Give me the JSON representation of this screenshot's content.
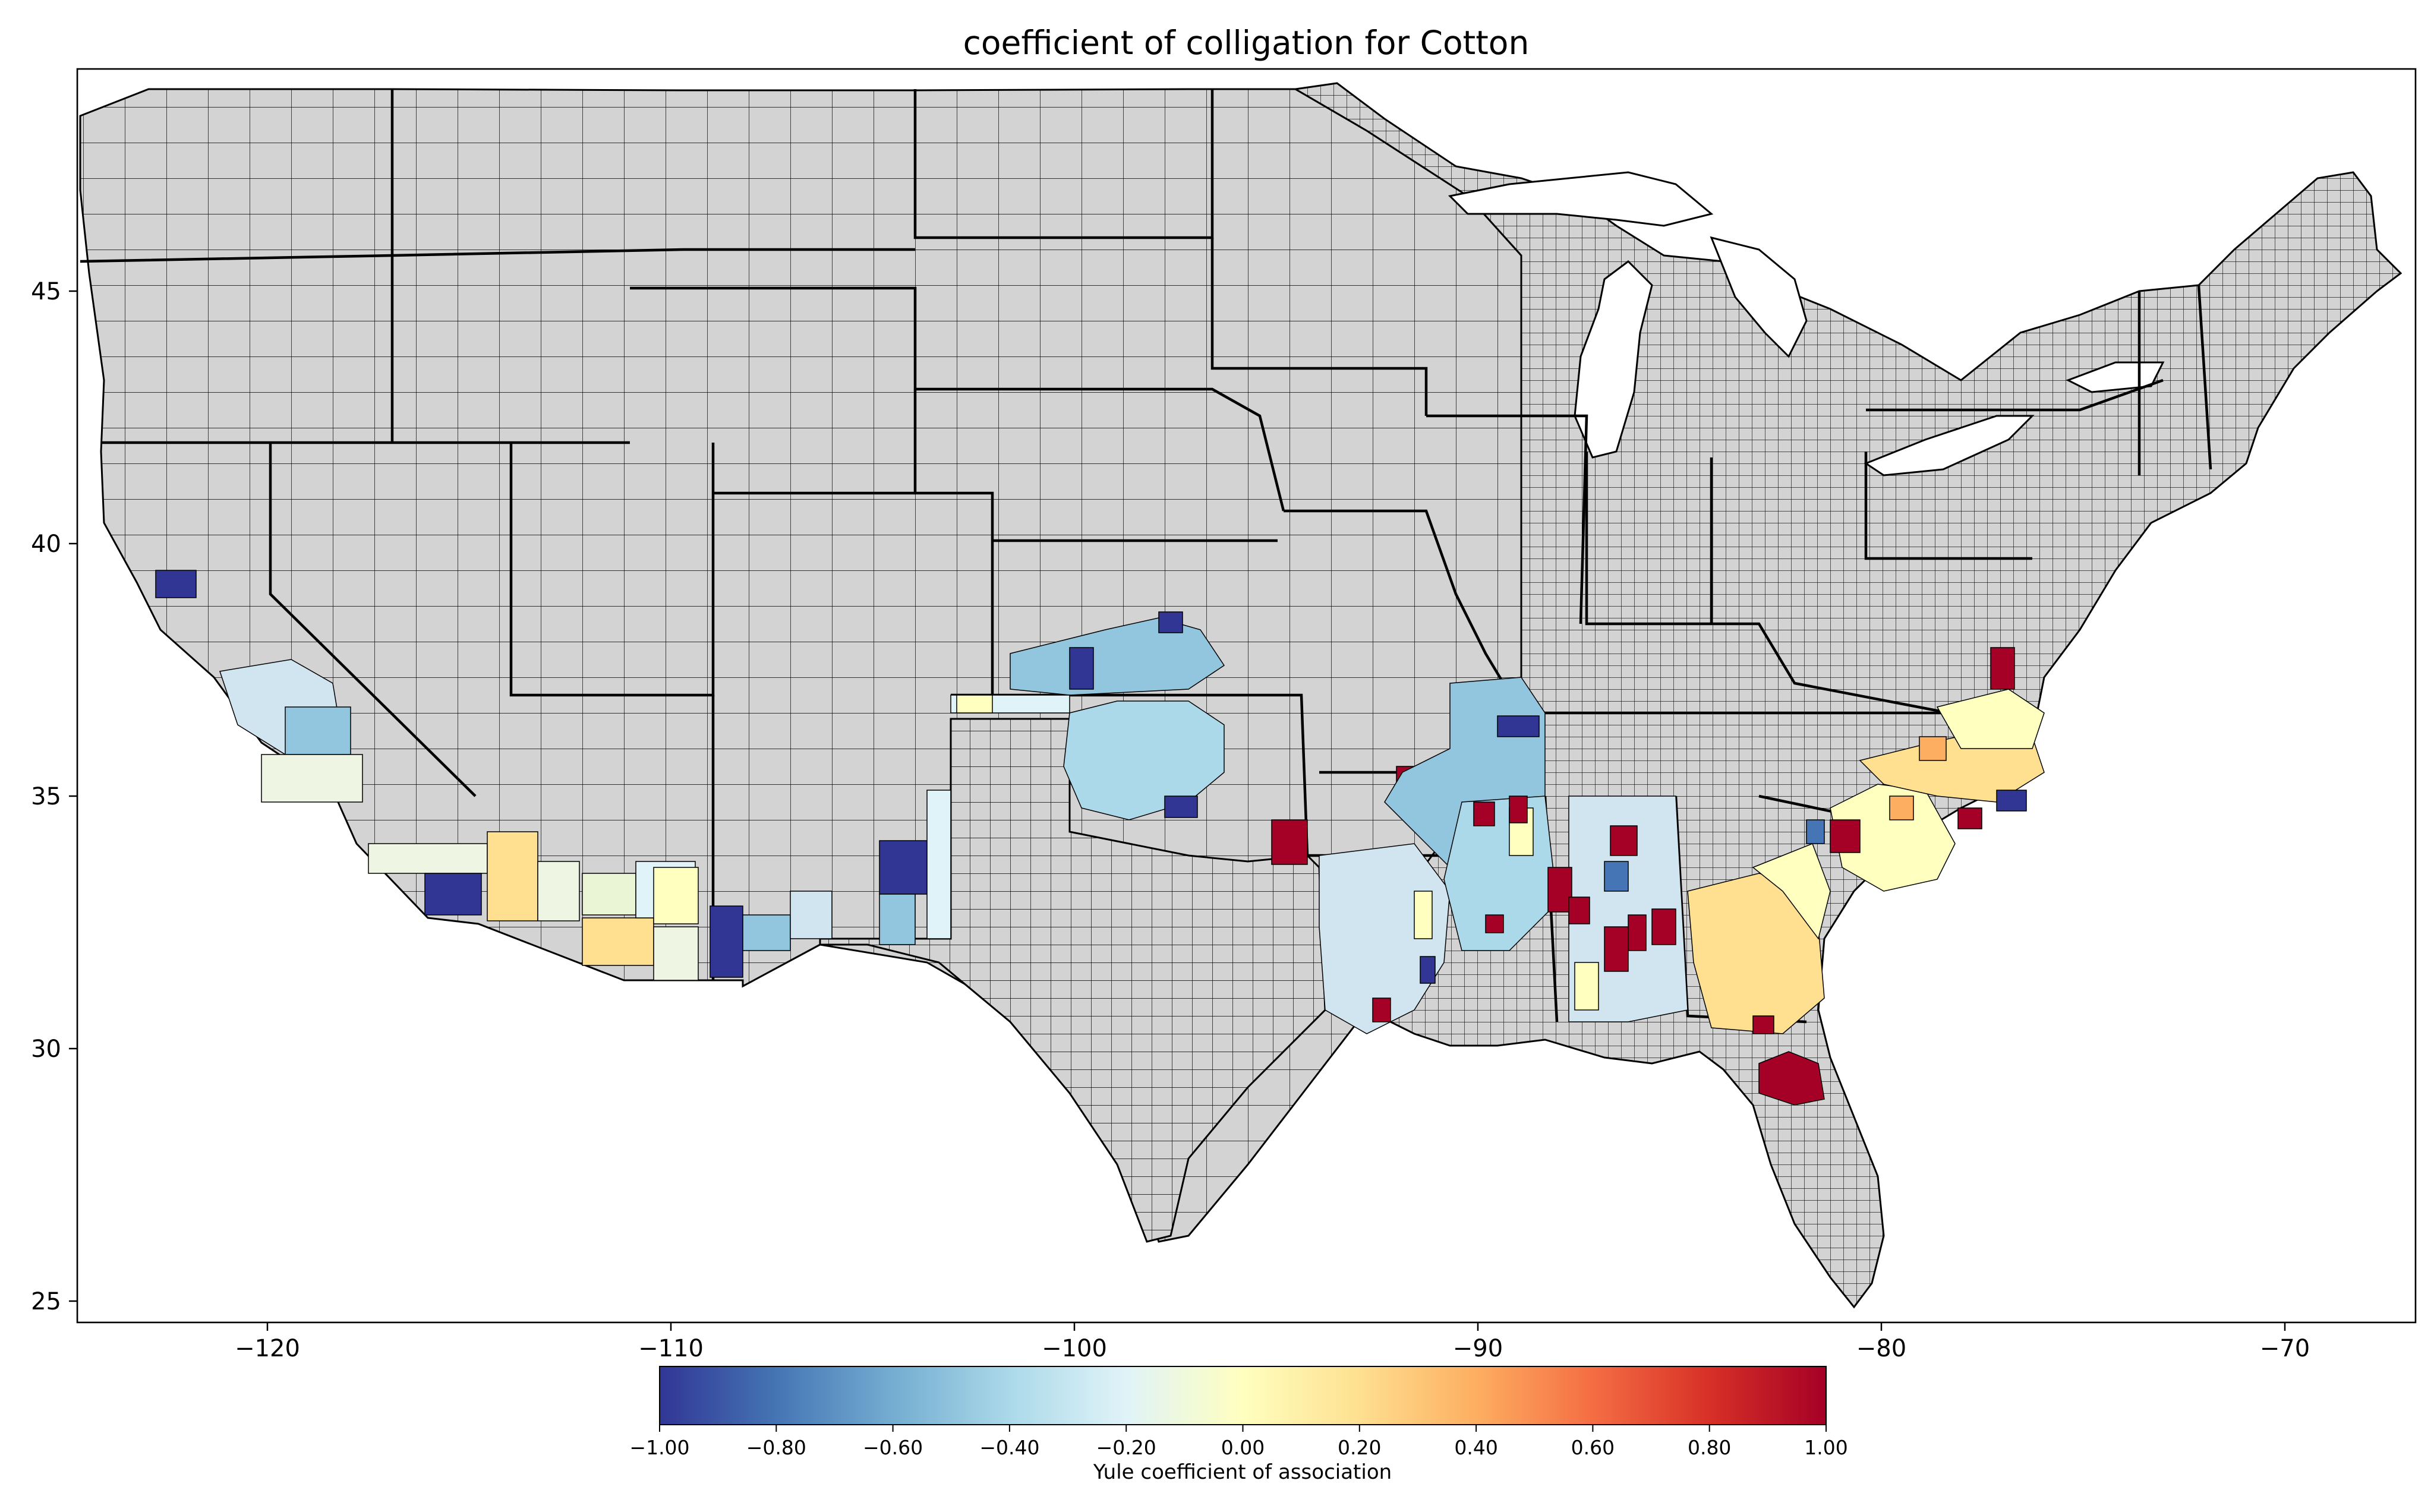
{
  "title": "coefficient of colligation for Cotton",
  "colorbar": {
    "label": "Yule coefficient of association",
    "ticks": [
      "−1.00",
      "−0.80",
      "−0.60",
      "−0.40",
      "−0.20",
      "0.00",
      "0.20",
      "0.40",
      "0.60",
      "0.80",
      "1.00"
    ],
    "colormap": "RdYlBu_r",
    "range": [
      -1.0,
      1.0
    ]
  },
  "axes": {
    "x_ticks": [
      "−120",
      "−110",
      "−100",
      "−90",
      "−80",
      "−70"
    ],
    "y_ticks": [
      "25",
      "30",
      "35",
      "40",
      "45"
    ]
  },
  "colors": {
    "no_data": "#d3d3d3",
    "outline": "#000000",
    "very_negative": "#313695",
    "negative": "#4575b4",
    "mid_negative": "#92c5de",
    "light_negative": "#d1e5f0",
    "neutral": "#ffffbf",
    "light_positive": "#fee090",
    "positive": "#fdae61",
    "strong_positive": "#a50026"
  }
}
